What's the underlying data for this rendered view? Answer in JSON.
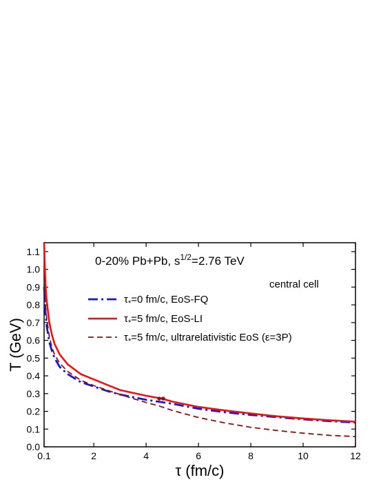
{
  "chart_data": {
    "type": "line",
    "title_line": {
      "prefix": "0-20% Pb+Pb, s",
      "sup": "1/2",
      "suffix": "=2.76 TeV"
    },
    "annotation": "central cell",
    "xlabel": "τ (fm/c)",
    "ylabel": "T (GeV)",
    "xlim": [
      0.1,
      12
    ],
    "ylim": [
      0.0,
      1.15
    ],
    "x_ticks": [
      "0.1",
      "2",
      "4",
      "6",
      "8",
      "10",
      "12"
    ],
    "x_tick_values": [
      0.1,
      2,
      4,
      6,
      8,
      10,
      12
    ],
    "y_ticks": [
      "0.0",
      "0.1",
      "0.2",
      "0.3",
      "0.4",
      "0.5",
      "0.6",
      "0.7",
      "0.8",
      "0.9",
      "1.0",
      "1.1"
    ],
    "y_tick_values": [
      0.0,
      0.1,
      0.2,
      0.3,
      0.4,
      0.5,
      0.6,
      0.7,
      0.8,
      0.9,
      1.0,
      1.1
    ],
    "legend_position": "top-center",
    "series": [
      {
        "name": "τ*=0 fm/c, EoS-FQ",
        "name_parts": {
          "tau": "τ",
          "sub": "*",
          "rest": "=0 fm/c, EoS-FQ"
        },
        "color": "#1515e0",
        "style": "dash-dot",
        "x": [
          0.1,
          0.15,
          0.2,
          0.3,
          0.4,
          0.5,
          0.7,
          1.0,
          1.5,
          2.0,
          2.5,
          3.0,
          4.0,
          5.0,
          6.0,
          7.0,
          8.0,
          9.0,
          10.0,
          11.0,
          12.0
        ],
        "y": [
          0.9,
          0.76,
          0.68,
          0.59,
          0.54,
          0.5,
          0.45,
          0.41,
          0.365,
          0.34,
          0.315,
          0.295,
          0.265,
          0.243,
          0.215,
          0.195,
          0.18,
          0.167,
          0.155,
          0.145,
          0.137
        ]
      },
      {
        "name": "τ*=5 fm/c, EoS-LI",
        "name_parts": {
          "tau": "τ",
          "sub": "*",
          "rest": "=5 fm/c, EoS-LI"
        },
        "color": "#ee1111",
        "style": "solid",
        "x": [
          0.1,
          0.12,
          0.15,
          0.2,
          0.3,
          0.4,
          0.5,
          0.7,
          1.0,
          1.5,
          2.0,
          2.5,
          3.0,
          4.0,
          4.6,
          5.0,
          6.0,
          7.0,
          8.0,
          9.0,
          10.0,
          11.0,
          12.0
        ],
        "y": [
          1.15,
          1.05,
          0.92,
          0.82,
          0.7,
          0.63,
          0.58,
          0.52,
          0.465,
          0.41,
          0.38,
          0.35,
          0.32,
          0.288,
          0.272,
          0.255,
          0.225,
          0.205,
          0.188,
          0.172,
          0.16,
          0.15,
          0.142
        ]
      },
      {
        "name": "τ*=5 fm/c, ultrarelativistic EoS (ε=3P)",
        "name_parts": {
          "tau": "τ",
          "sub": "*",
          "rest": "=5 fm/c, ultrarelativistic EoS (ε=3P)"
        },
        "color": "#8b1010",
        "style": "dashed",
        "x": [
          0.1,
          0.15,
          0.2,
          0.3,
          0.4,
          0.5,
          0.7,
          1.0,
          1.5,
          2.0,
          2.5,
          3.0,
          4.0,
          4.5,
          5.0,
          6.0,
          7.0,
          8.0,
          9.0,
          10.0,
          11.0,
          12.0
        ],
        "y": [
          0.95,
          0.8,
          0.72,
          0.62,
          0.56,
          0.52,
          0.47,
          0.425,
          0.375,
          0.345,
          0.32,
          0.295,
          0.25,
          0.23,
          0.205,
          0.165,
          0.135,
          0.11,
          0.092,
          0.077,
          0.065,
          0.058
        ]
      }
    ],
    "markers": [
      {
        "x": 4.5,
        "y": 0.272,
        "color": "#8b1010"
      },
      {
        "x": 4.65,
        "y": 0.272,
        "color": "#8b1010"
      }
    ]
  }
}
